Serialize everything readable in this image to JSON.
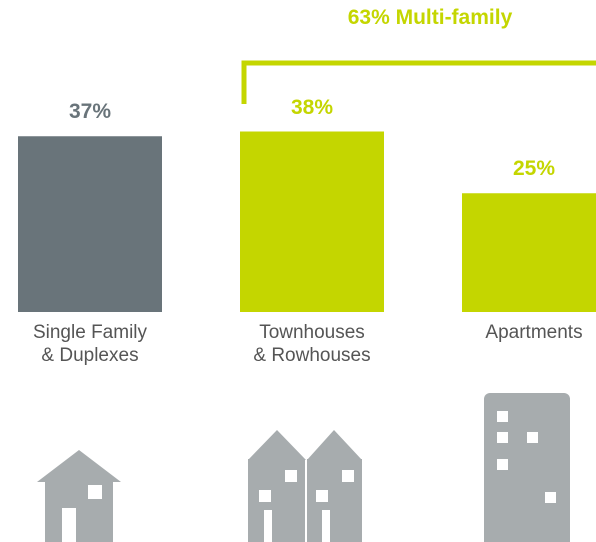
{
  "chart_data": {
    "type": "bar",
    "annotation": "63% Multi-family",
    "categories": [
      "Single Family & Duplexes",
      "Townhouses & Rowhouses",
      "Apartments"
    ],
    "values": [
      37,
      38,
      25
    ],
    "value_labels": [
      "37%",
      "38%",
      "25%"
    ],
    "colors": [
      "#69747a",
      "#c4d600",
      "#c4d600"
    ]
  }
}
